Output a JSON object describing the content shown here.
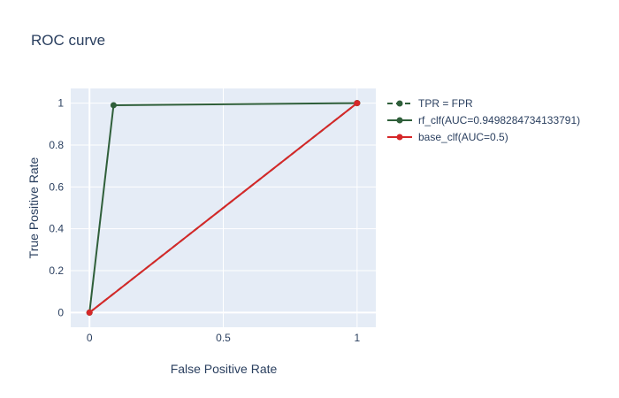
{
  "chart_data": {
    "type": "line",
    "title": "ROC curve",
    "xlabel": "False Positive Rate",
    "ylabel": "True Positive Rate",
    "xlim": [
      -0.07,
      1.07
    ],
    "ylim": [
      -0.07,
      1.07
    ],
    "xticks": [
      0,
      0.5,
      1
    ],
    "xtick_labels": [
      "0",
      "0.5",
      "1"
    ],
    "yticks": [
      0,
      0.2,
      0.4,
      0.6,
      0.8,
      1
    ],
    "ytick_labels": [
      "0",
      "0.2",
      "0.4",
      "0.6",
      "0.8",
      "1"
    ],
    "grid": true,
    "plot_background": "#e5ecf6",
    "legend_position": "right",
    "series": [
      {
        "name": "TPR = FPR",
        "color": "#2f5f3a",
        "dash": "dash",
        "x": [
          0,
          1
        ],
        "y": [
          0,
          1
        ]
      },
      {
        "name": "rf_clf(AUC=0.9498284734133791)",
        "color": "#2f5f3a",
        "dash": "solid",
        "x": [
          0,
          0.09,
          1
        ],
        "y": [
          0,
          0.99,
          1
        ]
      },
      {
        "name": "base_clf(AUC=0.5)",
        "color": "#d62728",
        "dash": "solid",
        "x": [
          0,
          1
        ],
        "y": [
          0,
          1
        ]
      }
    ]
  }
}
